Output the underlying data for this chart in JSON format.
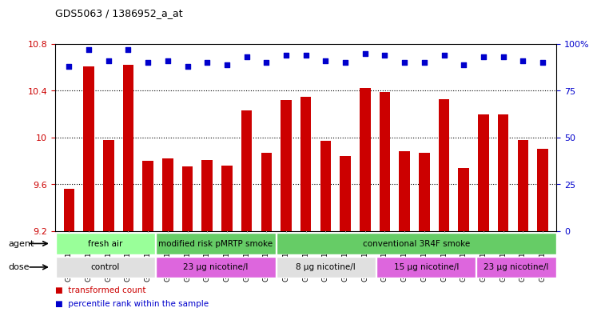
{
  "title": "GDS5063 / 1386952_a_at",
  "samples": [
    "GSM1217206",
    "GSM1217207",
    "GSM1217208",
    "GSM1217209",
    "GSM1217210",
    "GSM1217211",
    "GSM1217212",
    "GSM1217213",
    "GSM1217214",
    "GSM1217215",
    "GSM1217221",
    "GSM1217222",
    "GSM1217223",
    "GSM1217224",
    "GSM1217225",
    "GSM1217216",
    "GSM1217217",
    "GSM1217218",
    "GSM1217219",
    "GSM1217220",
    "GSM1217226",
    "GSM1217227",
    "GSM1217228",
    "GSM1217229",
    "GSM1217230"
  ],
  "bar_values": [
    9.56,
    10.61,
    9.98,
    10.62,
    9.8,
    9.82,
    9.75,
    9.81,
    9.76,
    10.23,
    9.87,
    10.32,
    10.35,
    9.97,
    9.84,
    10.42,
    10.39,
    9.88,
    9.87,
    10.33,
    9.74,
    10.2,
    10.2,
    9.98,
    9.9
  ],
  "percentile_values": [
    88,
    97,
    91,
    97,
    90,
    91,
    88,
    90,
    89,
    93,
    90,
    94,
    94,
    91,
    90,
    95,
    94,
    90,
    90,
    94,
    89,
    93,
    93,
    91,
    90
  ],
  "bar_color": "#cc0000",
  "percentile_color": "#0000cc",
  "ylim_left": [
    9.2,
    10.8
  ],
  "ylim_right": [
    0,
    100
  ],
  "yticks_left": [
    9.2,
    9.6,
    10.0,
    10.4,
    10.8
  ],
  "yticks_right": [
    0,
    25,
    50,
    75,
    100
  ],
  "ytick_labels_left": [
    "9.2",
    "9.6",
    "10",
    "10.4",
    "10.8"
  ],
  "ytick_labels_right": [
    "0",
    "25",
    "50",
    "75",
    "100%"
  ],
  "dotted_lines": [
    9.6,
    10.0,
    10.4
  ],
  "agent_groups": [
    {
      "label": "fresh air",
      "start": 0,
      "end": 5,
      "color": "#99ff99"
    },
    {
      "label": "modified risk pMRTP smoke",
      "start": 5,
      "end": 11,
      "color": "#66cc66"
    },
    {
      "label": "conventional 3R4F smoke",
      "start": 11,
      "end": 25,
      "color": "#66cc66"
    }
  ],
  "dose_groups": [
    {
      "label": "control",
      "start": 0,
      "end": 5,
      "color": "#e0e0e0"
    },
    {
      "label": "23 μg nicotine/l",
      "start": 5,
      "end": 11,
      "color": "#dd66dd"
    },
    {
      "label": "8 μg nicotine/l",
      "start": 11,
      "end": 16,
      "color": "#e0e0e0"
    },
    {
      "label": "15 μg nicotine/l",
      "start": 16,
      "end": 21,
      "color": "#dd66dd"
    },
    {
      "label": "23 μg nicotine/l",
      "start": 21,
      "end": 25,
      "color": "#dd66dd"
    }
  ],
  "xtick_bg": "#d8d8d8",
  "legend_items": [
    {
      "label": "transformed count",
      "color": "#cc0000"
    },
    {
      "label": "percentile rank within the sample",
      "color": "#0000cc"
    }
  ]
}
